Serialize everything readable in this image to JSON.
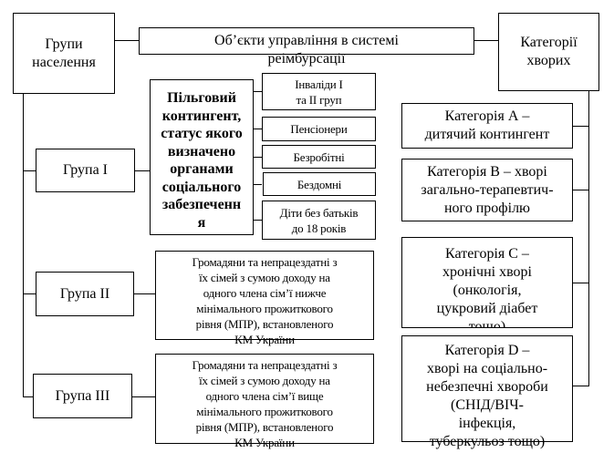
{
  "title": "Об’єкти управління в системі реімбурсації",
  "left": {
    "header": "Групи\nнаселення",
    "groups": [
      {
        "label": "Група I",
        "description": "Пільговий\nконтингент,\nстатус якого\nвизначено\nорганами\nсоціального\nзабезпеченн\nя",
        "subitems": [
          "Інваліди I\nта II груп",
          "Пенсіонери",
          "Безробітні",
          "Бездомні",
          "Діти без батьків\nдо 18 років"
        ]
      },
      {
        "label": "Група II",
        "description": "Громадяни та непрацездатні з\nїх сімей з сумою доходу на\nодного члена сім’ї нижче\nмінімального прожиткового\nрівня (МПР), встановленого\nКМ України"
      },
      {
        "label": "Група III",
        "description": "Громадяни та непрацездатні з\nїх сімей з сумою доходу на\nодного члена сім’ї вище\nмінімального прожиткового\nрівня (МПР), встановленого\nКМ України"
      }
    ]
  },
  "right": {
    "header": "Категорії\nхворих",
    "categories": [
      "Категорія А –\nдитячий контингент",
      "Категорія В – хворі\nзагально-терапевтич-\nного профілю",
      "Категорія С –\nхронічні хворі\n(онкологія,\nцукровий діабет\nтощо)",
      "Категорія D –\nхворі на соціально-\nнебезпечні хвороби\n(СНІД/ВІЧ-\nінфекція,\nтуберкульоз тощо)"
    ]
  }
}
